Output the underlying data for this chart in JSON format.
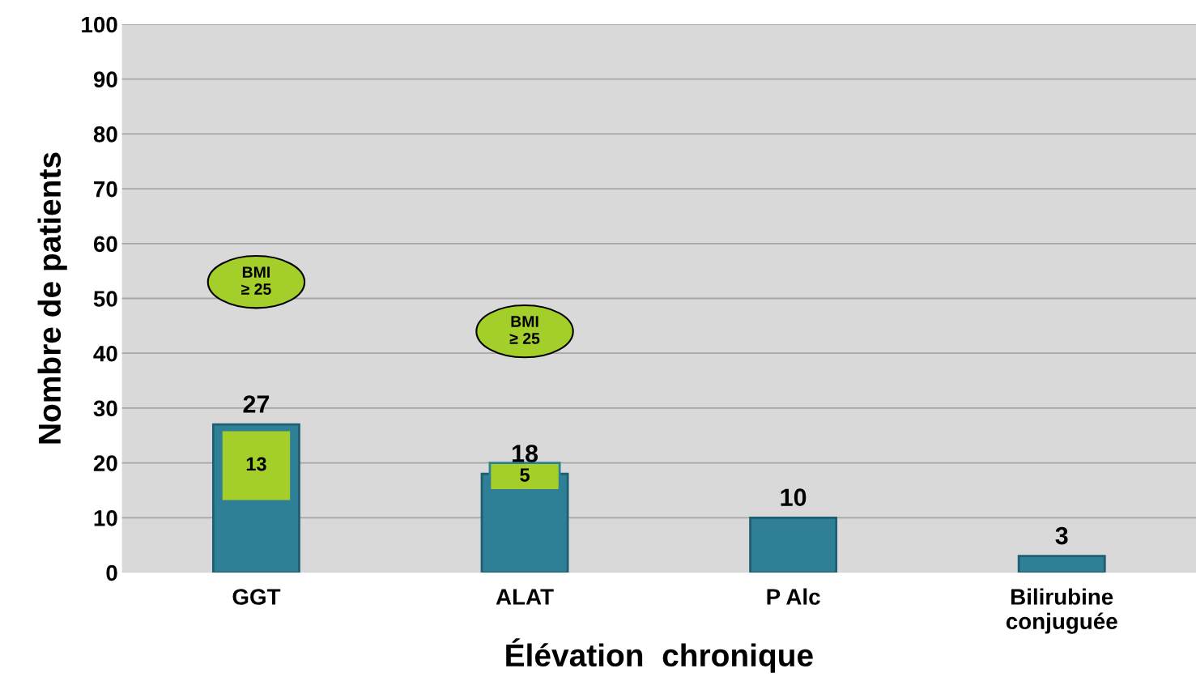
{
  "chart_data": {
    "type": "bar",
    "xlabel": "Élévation  chronique",
    "ylabel": "Nombre de patients",
    "categories": [
      "GGT",
      "ALAT",
      "P Alc",
      "Bilirubine\nconjuguée"
    ],
    "series": [
      {
        "color": "#2f7f97",
        "values": [
          27,
          18,
          10,
          3
        ],
        "data_labels": true
      },
      {
        "color": "#a4cf2a",
        "values": [
          13,
          5,
          null,
          null
        ],
        "base": [
          13,
          15,
          null,
          null
        ],
        "data_labels": true
      }
    ],
    "annotations": [
      "BMI\n≥ 25",
      "BMI\n≥ 25"
    ],
    "ylim": [
      0,
      100
    ],
    "yticks": [
      0,
      10,
      20,
      30,
      40,
      50,
      60,
      70,
      80,
      90,
      100
    ],
    "grid": "y"
  }
}
